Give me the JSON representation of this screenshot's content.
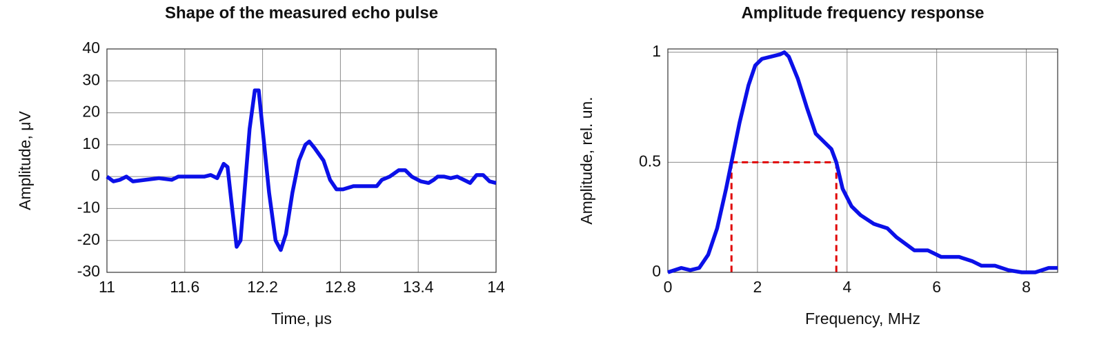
{
  "chart_data": [
    {
      "type": "line",
      "title": "Shape of the measured echo pulse",
      "x_label": "Time, μs",
      "y_label": "Amplitude, μV",
      "xlim": [
        11,
        14
      ],
      "xticks": [
        11,
        11.6,
        12.2,
        12.8,
        13.4,
        14
      ],
      "ylim": [
        -30,
        40
      ],
      "yticks": [
        -30,
        -20,
        -10,
        0,
        10,
        20,
        30,
        40
      ],
      "grid": true,
      "series": [
        {
          "color": "#0b10e8",
          "x": [
            11.0,
            11.05,
            11.1,
            11.15,
            11.2,
            11.3,
            11.4,
            11.5,
            11.55,
            11.6,
            11.7,
            11.75,
            11.8,
            11.85,
            11.9,
            11.93,
            11.96,
            12.0,
            12.03,
            12.07,
            12.1,
            12.14,
            12.17,
            12.2,
            12.25,
            12.3,
            12.34,
            12.38,
            12.43,
            12.48,
            12.53,
            12.56,
            12.6,
            12.67,
            12.72,
            12.77,
            12.82,
            12.9,
            13.0,
            13.08,
            13.12,
            13.18,
            13.25,
            13.3,
            13.35,
            13.42,
            13.48,
            13.52,
            13.55,
            13.6,
            13.65,
            13.7,
            13.75,
            13.8,
            13.85,
            13.9,
            13.95,
            14.0
          ],
          "values": [
            0,
            -1.5,
            -1,
            0,
            -1.5,
            -1,
            -0.5,
            -1,
            0,
            0,
            0,
            0,
            0.5,
            -0.5,
            4,
            3,
            -8,
            -22,
            -20,
            0,
            15,
            27,
            27,
            15,
            -5,
            -20,
            -23,
            -18,
            -5,
            5,
            10,
            11,
            9,
            5,
            -1,
            -4,
            -4,
            -3,
            -3,
            -3,
            -1,
            0,
            2,
            2,
            0,
            -1.5,
            -2,
            -1,
            0,
            0,
            -0.5,
            0,
            -1,
            -2,
            0.5,
            0.5,
            -1.5,
            -2
          ]
        }
      ]
    },
    {
      "type": "line",
      "title": "Amplitude frequency response",
      "x_label": "Frequency, MHz",
      "y_label": "Amplitude, rel. un.",
      "xlim": [
        0,
        8.7
      ],
      "xticks": [
        0,
        2,
        4,
        6,
        8
      ],
      "ylim": [
        0,
        1.015
      ],
      "yticks": [
        0,
        0.5,
        1
      ],
      "grid": true,
      "series": [
        {
          "color": "#0b10e8",
          "x": [
            0,
            0.3,
            0.5,
            0.7,
            0.9,
            1.1,
            1.3,
            1.42,
            1.6,
            1.8,
            1.95,
            2.1,
            2.3,
            2.5,
            2.6,
            2.7,
            2.9,
            3.1,
            3.3,
            3.5,
            3.65,
            3.76,
            3.9,
            4.1,
            4.3,
            4.6,
            4.9,
            5.1,
            5.3,
            5.5,
            5.8,
            6.1,
            6.5,
            6.8,
            7.0,
            7.3,
            7.6,
            7.9,
            8.2,
            8.5,
            8.7
          ],
          "values": [
            0,
            0.02,
            0.01,
            0.02,
            0.08,
            0.2,
            0.38,
            0.5,
            0.68,
            0.85,
            0.94,
            0.97,
            0.98,
            0.99,
            1.0,
            0.98,
            0.88,
            0.75,
            0.63,
            0.59,
            0.56,
            0.5,
            0.38,
            0.3,
            0.26,
            0.22,
            0.2,
            0.16,
            0.13,
            0.1,
            0.1,
            0.07,
            0.07,
            0.05,
            0.03,
            0.03,
            0.01,
            0,
            0,
            0.02,
            0.02
          ]
        }
      ],
      "band_marker": {
        "x": [
          1.42,
          3.76
        ],
        "y": 0.5,
        "color": "#e00000"
      }
    }
  ]
}
